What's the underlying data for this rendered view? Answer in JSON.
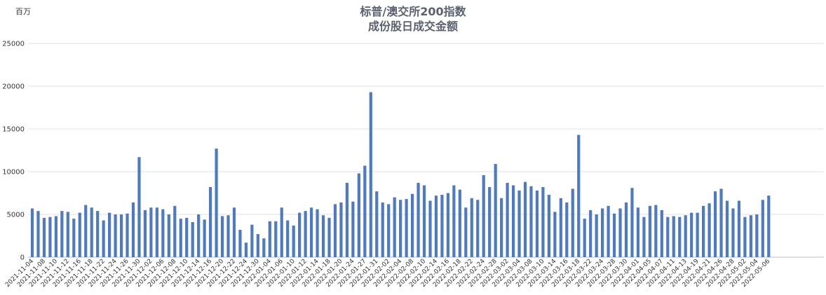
{
  "chart_data": {
    "type": "bar",
    "title_line1": "标普/澳交所200指数",
    "title_line2": "成份股日成交金额",
    "ylabel": "百万",
    "ylim": [
      0,
      25000
    ],
    "y_ticks": [
      "0",
      "5000",
      "10000",
      "15000",
      "20000",
      "25000"
    ],
    "bar_color": "#4e7ac4",
    "grid_color": "#e2e2e2",
    "x_labels": [
      "2021-11-04",
      "2021-11-08",
      "2021-11-10",
      "2021-11-12",
      "2021-11-16",
      "2021-11-18",
      "2021-11-22",
      "2021-11-24",
      "2021-11-26",
      "2021-11-30",
      "2021-12-02",
      "2021-12-06",
      "2021-12-08",
      "2021-12-10",
      "2021-12-14",
      "2021-12-16",
      "2021-12-20",
      "2021-12-22",
      "2021-12-24",
      "2021-12-30",
      "2022-01-04",
      "2022-01-06",
      "2022-01-10",
      "2022-01-12",
      "2022-01-14",
      "2022-01-18",
      "2022-01-20",
      "2022-01-24",
      "2022-01-27",
      "2022-01-31",
      "2022-02-02",
      "2022-02-04",
      "2022-02-08",
      "2022-02-10",
      "2022-02-14",
      "2022-02-16",
      "2022-02-18",
      "2022-02-22",
      "2022-02-24",
      "2022-02-28",
      "2022-03-02",
      "2022-03-04",
      "2022-03-08",
      "2022-03-10",
      "2022-03-14",
      "2022-03-16",
      "2022-03-18",
      "2022-03-22",
      "2022-03-24",
      "2022-03-28",
      "2022-03-30",
      "2022-04-01",
      "2022-04-05",
      "2022-04-07",
      "2022-04-11",
      "2022-04-13",
      "2022-04-19",
      "2022-04-21",
      "2022-04-26",
      "2022-04-28",
      "2022-05-02",
      "2022-05-04",
      "2022-05-06"
    ],
    "values": [
      5700,
      5400,
      4600,
      4700,
      4800,
      5400,
      5300,
      4500,
      5200,
      6100,
      5800,
      5400,
      4300,
      5200,
      5000,
      5000,
      5100,
      6400,
      11700,
      5500,
      5800,
      5800,
      5600,
      5000,
      6000,
      4500,
      4600,
      4100,
      5000,
      4400,
      8200,
      12700,
      4800,
      4900,
      5800,
      3200,
      1700,
      3800,
      2700,
      2200,
      4200,
      4200,
      5800,
      4300,
      3700,
      5200,
      5400,
      5800,
      5600,
      4900,
      4600,
      6200,
      6400,
      8700,
      6500,
      9800,
      10700,
      19300,
      7700,
      6400,
      6200,
      7000,
      6700,
      6800,
      7400,
      8700,
      8400,
      6600,
      7200,
      7300,
      7500,
      8400,
      7900,
      5800,
      6900,
      6700,
      9600,
      8200,
      10900,
      6900,
      8700,
      8400,
      7800,
      8800,
      8300,
      7800,
      8200,
      7300,
      5300,
      6900,
      6400,
      8000,
      14300,
      4500,
      5500,
      5000,
      5700,
      6000,
      5100,
      5700,
      6400,
      8100,
      5800,
      4700,
      6000,
      6100,
      5500,
      4700,
      4800,
      4700,
      4900,
      5200,
      5200,
      6000,
      6300,
      7700,
      8000,
      6600,
      5700,
      6600,
      4700,
      4900,
      5000,
      6700,
      7200
    ]
  }
}
